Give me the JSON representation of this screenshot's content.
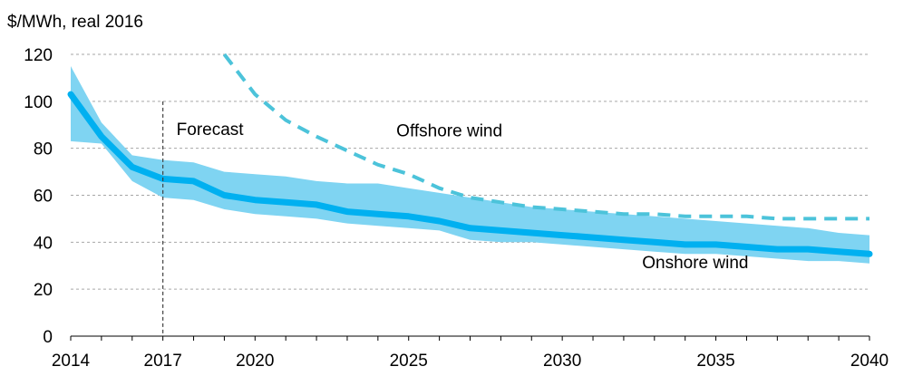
{
  "chart_data": {
    "type": "line",
    "y_unit_label": "$/MWh, real 2016",
    "xlim": [
      2014,
      2040
    ],
    "ylim": [
      0,
      120
    ],
    "x_ticks": [
      2014,
      2017,
      2020,
      2025,
      2030,
      2035,
      2040
    ],
    "x_tick_labels": [
      "2014",
      "2017",
      "2020",
      "2025",
      "2030",
      "2035",
      "2040"
    ],
    "y_ticks": [
      0,
      20,
      40,
      60,
      80,
      100,
      120
    ],
    "y_tick_labels": [
      "0",
      "20",
      "40",
      "60",
      "80",
      "100",
      "120"
    ],
    "grid": "horizontal dashed",
    "colors": {
      "onshore_line": "#00b0f0",
      "onshore_band": "#7fd4f2",
      "offshore_line": "#4cc3da",
      "forecast_line": "#404040"
    },
    "forecast_marker": {
      "x": 2017,
      "label": "Forecast"
    },
    "series": [
      {
        "name": "Onshore wind",
        "style": "solid-thick",
        "x": [
          2014,
          2015,
          2016,
          2017,
          2018,
          2019,
          2020,
          2021,
          2022,
          2023,
          2024,
          2025,
          2026,
          2027,
          2028,
          2029,
          2030,
          2031,
          2032,
          2033,
          2034,
          2035,
          2036,
          2037,
          2038,
          2039,
          2040
        ],
        "values": [
          103,
          85,
          72,
          67,
          66,
          60,
          58,
          57,
          56,
          53,
          52,
          51,
          49,
          46,
          45,
          44,
          43,
          42,
          41,
          40,
          39,
          39,
          38,
          37,
          37,
          36,
          35
        ],
        "band_upper": [
          115,
          91,
          77,
          75,
          74,
          70,
          69,
          68,
          66,
          65,
          65,
          63,
          61,
          59,
          57,
          55,
          54,
          53,
          52,
          51,
          50,
          49,
          48,
          47,
          46,
          44,
          43
        ],
        "band_lower": [
          83,
          82,
          66,
          59,
          58,
          54,
          52,
          51,
          50,
          48,
          47,
          46,
          45,
          41,
          40,
          40,
          39,
          38,
          37,
          36,
          35,
          35,
          34,
          33,
          32,
          32,
          31
        ]
      },
      {
        "name": "Offshore wind",
        "style": "dashed",
        "x": [
          2019,
          2020,
          2021,
          2022,
          2023,
          2024,
          2025,
          2026,
          2027,
          2028,
          2029,
          2030,
          2031,
          2032,
          2033,
          2034,
          2035,
          2036,
          2037,
          2038,
          2039,
          2040
        ],
        "values": [
          120,
          103,
          92,
          85,
          79,
          73,
          69,
          63,
          59,
          57,
          55,
          54,
          53,
          52,
          52,
          51,
          51,
          51,
          50,
          50,
          50,
          50
        ]
      }
    ],
    "annotations": [
      {
        "text": "Offshore wind",
        "x": 2024.6,
        "y": 85
      },
      {
        "text": "Onshore wind",
        "x": 2032.6,
        "y": 29
      }
    ]
  }
}
